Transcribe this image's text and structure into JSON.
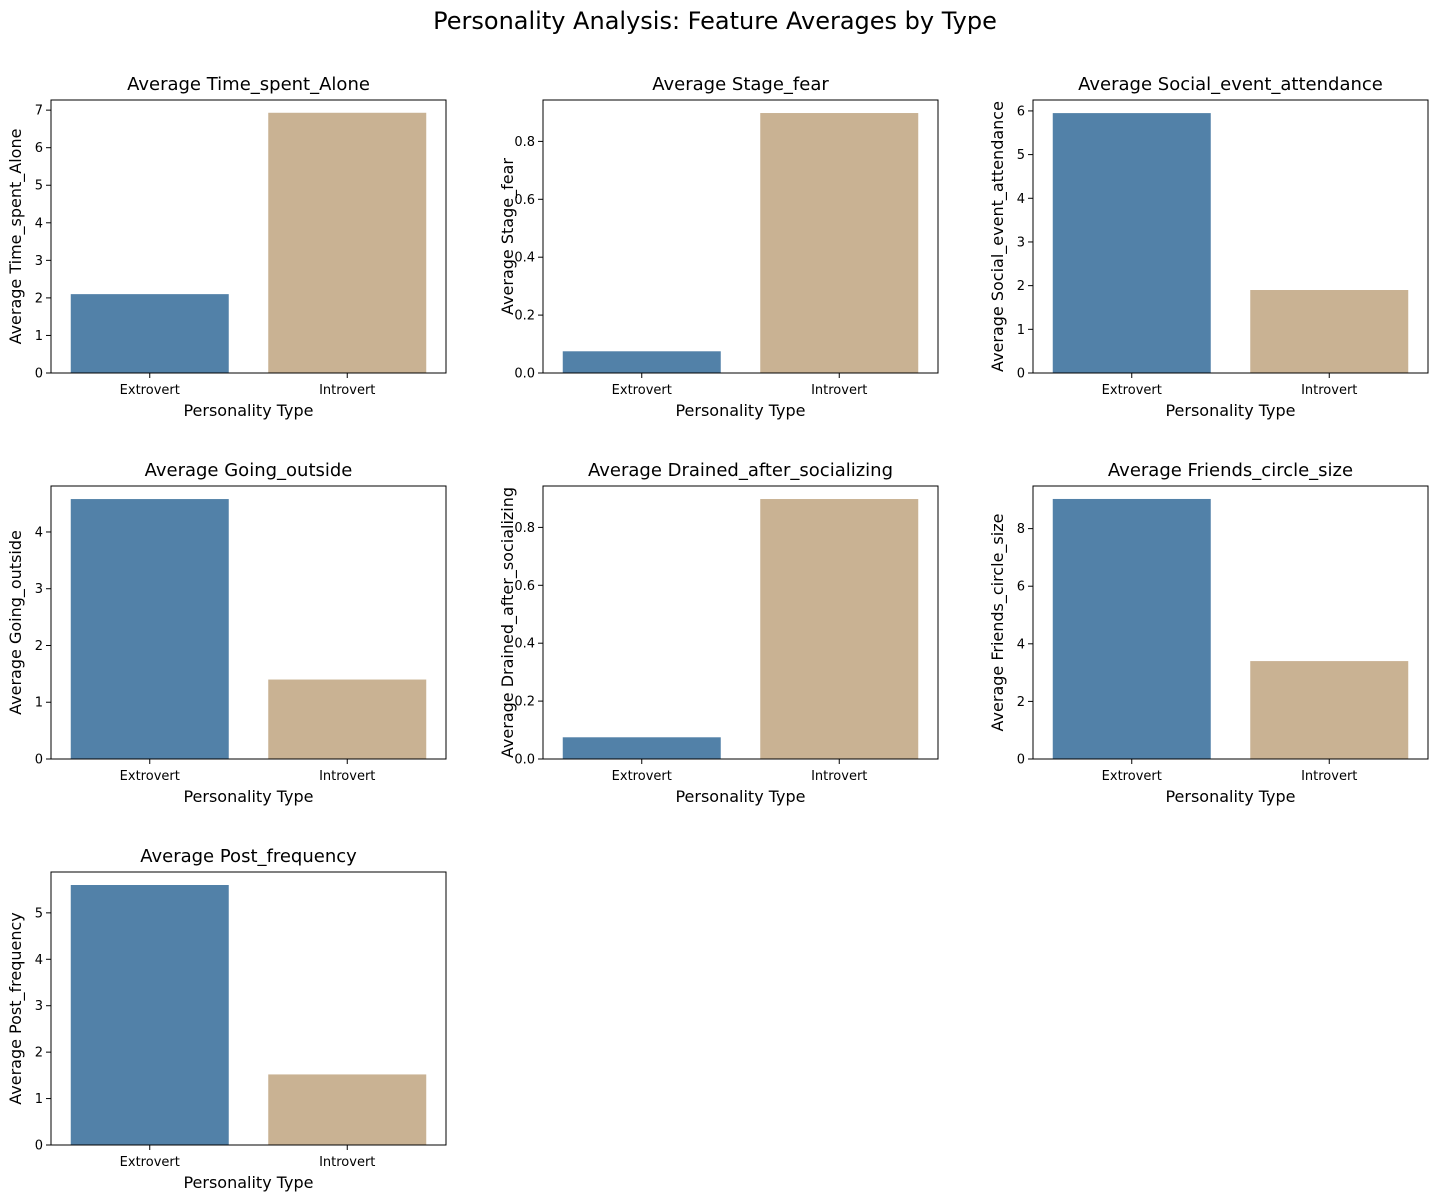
{
  "figure": {
    "title": "Personality Analysis: Feature Averages by Type",
    "colors": {
      "Extrovert": "#5281a8",
      "Introvert": "#c9b293"
    }
  },
  "chart_data": [
    {
      "type": "bar",
      "title": "Average Time_spent_Alone",
      "xlabel": "Personality Type",
      "ylabel": "Average Time_spent_Alone",
      "categories": [
        "Extrovert",
        "Introvert"
      ],
      "values": [
        2.1,
        6.93
      ],
      "ylim": [
        0,
        7.27
      ],
      "yticks": [
        0,
        1,
        2,
        3,
        4,
        5,
        6,
        7
      ],
      "ytick_labels": [
        "0",
        "1",
        "2",
        "3",
        "4",
        "5",
        "6",
        "7"
      ],
      "grid": false
    },
    {
      "type": "bar",
      "title": "Average Stage_fear",
      "xlabel": "Personality Type",
      "ylabel": "Average Stage_fear",
      "categories": [
        "Extrovert",
        "Introvert"
      ],
      "values": [
        0.075,
        0.898
      ],
      "ylim": [
        0,
        0.943
      ],
      "yticks": [
        0,
        0.2,
        0.4,
        0.6,
        0.8
      ],
      "ytick_labels": [
        "0.0",
        "0.2",
        "0.4",
        "0.6",
        "0.8"
      ],
      "grid": false
    },
    {
      "type": "bar",
      "title": "Average Social_event_attendance",
      "xlabel": "Personality Type",
      "ylabel": "Average Social_event_attendance",
      "categories": [
        "Extrovert",
        "Introvert"
      ],
      "values": [
        5.95,
        1.9
      ],
      "ylim": [
        0,
        6.25
      ],
      "yticks": [
        0,
        1,
        2,
        3,
        4,
        5,
        6
      ],
      "ytick_labels": [
        "0",
        "1",
        "2",
        "3",
        "4",
        "5",
        "6"
      ],
      "grid": false
    },
    {
      "type": "bar",
      "title": "Average Going_outside",
      "xlabel": "Personality Type",
      "ylabel": "Average Going_outside",
      "categories": [
        "Extrovert",
        "Introvert"
      ],
      "values": [
        4.58,
        1.4
      ],
      "ylim": [
        0,
        4.81
      ],
      "yticks": [
        0,
        1,
        2,
        3,
        4
      ],
      "ytick_labels": [
        "0",
        "1",
        "2",
        "3",
        "4"
      ],
      "grid": false
    },
    {
      "type": "bar",
      "title": "Average Drained_after_socializing",
      "xlabel": "Personality Type",
      "ylabel": "Average Drained_after_socializing",
      "categories": [
        "Extrovert",
        "Introvert"
      ],
      "values": [
        0.075,
        0.898
      ],
      "ylim": [
        0,
        0.943
      ],
      "yticks": [
        0,
        0.2,
        0.4,
        0.6,
        0.8
      ],
      "ytick_labels": [
        "0.0",
        "0.2",
        "0.4",
        "0.6",
        "0.8"
      ],
      "grid": false
    },
    {
      "type": "bar",
      "title": "Average Friends_circle_size",
      "xlabel": "Personality Type",
      "ylabel": "Average Friends_circle_size",
      "categories": [
        "Extrovert",
        "Introvert"
      ],
      "values": [
        9.03,
        3.4
      ],
      "ylim": [
        0,
        9.48
      ],
      "yticks": [
        0,
        2,
        4,
        6,
        8
      ],
      "ytick_labels": [
        "0",
        "2",
        "4",
        "6",
        "8"
      ],
      "grid": false
    },
    {
      "type": "bar",
      "title": "Average Post_frequency",
      "xlabel": "Personality Type",
      "ylabel": "Average Post_frequency",
      "categories": [
        "Extrovert",
        "Introvert"
      ],
      "values": [
        5.6,
        1.52
      ],
      "ylim": [
        0,
        5.88
      ],
      "yticks": [
        0,
        1,
        2,
        3,
        4,
        5
      ],
      "ytick_labels": [
        "0",
        "1",
        "2",
        "3",
        "4",
        "5"
      ],
      "grid": false
    }
  ]
}
